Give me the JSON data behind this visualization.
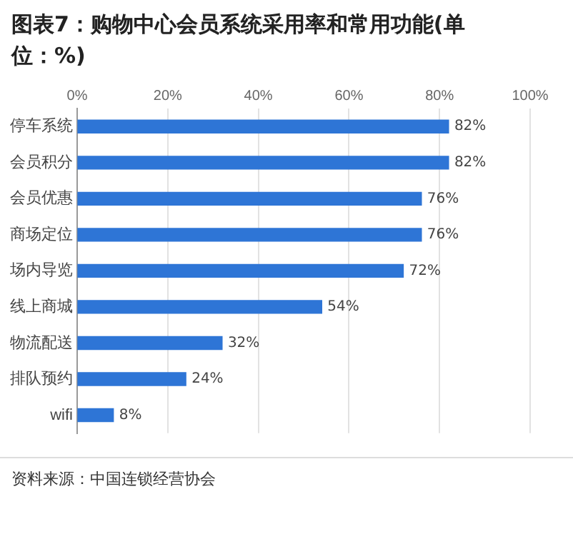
{
  "chart_data": {
    "type": "bar",
    "orientation": "horizontal",
    "title": "图表7：购物中心会员系统采用率和常用功能(单位：%)",
    "categories": [
      "停车系统",
      "会员积分",
      "会员优惠",
      "商场定位",
      "场内导览",
      "线上商城",
      "物流配送",
      "排队预约",
      "wifi"
    ],
    "values": [
      82,
      82,
      76,
      76,
      72,
      54,
      32,
      24,
      8
    ],
    "value_labels": [
      "82%",
      "82%",
      "76%",
      "76%",
      "72%",
      "54%",
      "32%",
      "24%",
      "8%"
    ],
    "color": "#2e75d6",
    "xlim": [
      0,
      100
    ],
    "xticks": [
      {
        "value": 0,
        "label": "0%"
      },
      {
        "value": 20,
        "label": "20%"
      },
      {
        "value": 40,
        "label": "40%"
      },
      {
        "value": 60,
        "label": "60%"
      },
      {
        "value": 80,
        "label": "80%"
      },
      {
        "value": 100,
        "label": "100%"
      }
    ],
    "grid": "x",
    "annotations": [
      "资料来源：中国连锁经营协会"
    ]
  }
}
